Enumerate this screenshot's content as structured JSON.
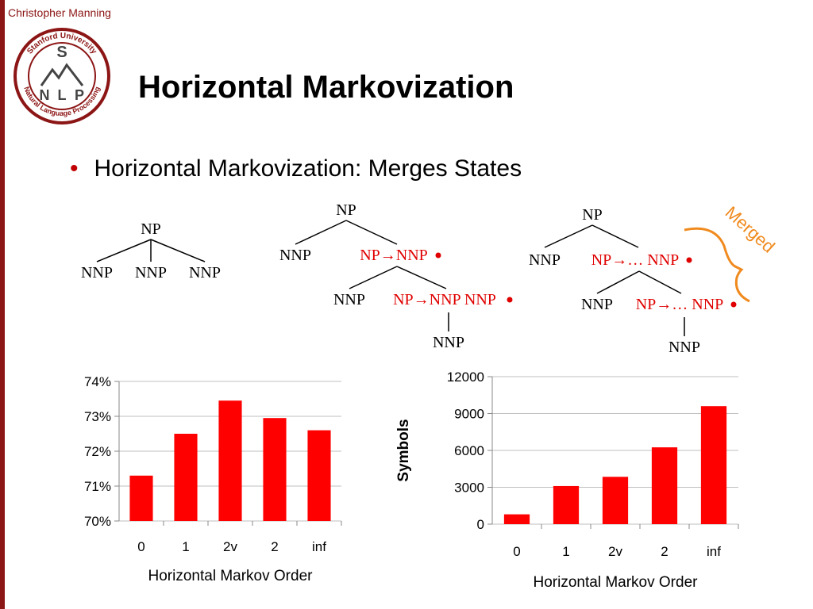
{
  "header": {
    "author": "Christopher Manning",
    "title": "Horizontal Markovization"
  },
  "logo": {
    "ring_text_top": "Stanford University",
    "ring_text_bottom": "Natural Language Processing",
    "letters": [
      "S",
      "N",
      "L",
      "P"
    ]
  },
  "bullet": {
    "text": "Horizontal Markovization: Merges States"
  },
  "trees": {
    "tree1": {
      "root": "NP",
      "children": [
        "NNP",
        "NNP",
        "NNP"
      ]
    },
    "tree2": {
      "root": "NP",
      "left": "NNP",
      "right": "NP→NNP",
      "sub_left": "NNP",
      "sub_right": "NP→NNP NNP",
      "leaf": "NNP"
    },
    "tree3": {
      "root": "NP",
      "left": "NNP",
      "right": "NP→… NNP",
      "sub_left": "NNP",
      "sub_right": "NP→… NNP",
      "leaf": "NNP"
    },
    "merged_label": "Merged",
    "colors": {
      "highlight": "#e00000",
      "merged": "#f08a1e"
    }
  },
  "chart_data": [
    {
      "type": "bar",
      "categories": [
        "0",
        "1",
        "2v",
        "2",
        "inf"
      ],
      "values": [
        71.3,
        72.5,
        73.45,
        72.95,
        72.6
      ],
      "ylim": [
        70,
        74
      ],
      "yticks": [
        70,
        71,
        72,
        73,
        74
      ],
      "ytick_labels": [
        "70%",
        "71%",
        "72%",
        "73%",
        "74%"
      ],
      "xlabel": "Horizontal Markov Order",
      "ylabel": "",
      "bar_color": "#ff0000",
      "grid": true
    },
    {
      "type": "bar",
      "categories": [
        "0",
        "1",
        "2v",
        "2",
        "inf"
      ],
      "values": [
        800,
        3100,
        3850,
        6250,
        9600
      ],
      "ylim": [
        0,
        12000
      ],
      "yticks": [
        0,
        3000,
        6000,
        9000,
        12000
      ],
      "ytick_labels": [
        "0",
        "3000",
        "6000",
        "9000",
        "12000"
      ],
      "xlabel": "Horizontal Markov Order",
      "ylabel": "Symbols",
      "bar_color": "#ff0000",
      "grid": true
    }
  ]
}
